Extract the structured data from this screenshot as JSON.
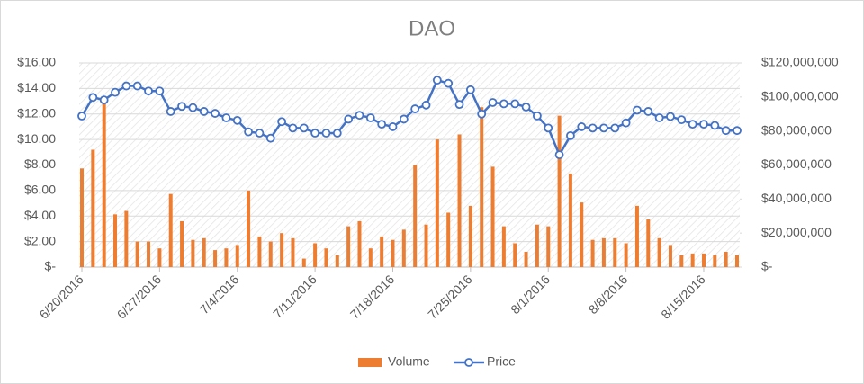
{
  "chart_data": {
    "type": "bar-line",
    "title": "DAO",
    "x": [
      "6/20/2016",
      "6/21/2016",
      "6/22/2016",
      "6/23/2016",
      "6/24/2016",
      "6/25/2016",
      "6/26/2016",
      "6/27/2016",
      "6/28/2016",
      "6/29/2016",
      "6/30/2016",
      "7/1/2016",
      "7/2/2016",
      "7/3/2016",
      "7/4/2016",
      "7/5/2016",
      "7/6/2016",
      "7/7/2016",
      "7/8/2016",
      "7/9/2016",
      "7/10/2016",
      "7/11/2016",
      "7/12/2016",
      "7/13/2016",
      "7/14/2016",
      "7/15/2016",
      "7/16/2016",
      "7/17/2016",
      "7/18/2016",
      "7/19/2016",
      "7/20/2016",
      "7/21/2016",
      "7/22/2016",
      "7/23/2016",
      "7/24/2016",
      "7/25/2016",
      "7/26/2016",
      "7/27/2016",
      "7/28/2016",
      "7/29/2016",
      "7/30/2016",
      "7/31/2016",
      "8/1/2016",
      "8/2/2016",
      "8/3/2016",
      "8/4/2016",
      "8/5/2016",
      "8/6/2016",
      "8/7/2016",
      "8/8/2016",
      "8/9/2016",
      "8/10/2016",
      "8/11/2016",
      "8/12/2016",
      "8/13/2016",
      "8/14/2016",
      "8/15/2016",
      "8/16/2016",
      "8/17/2016",
      "8/18/2016"
    ],
    "xticks": [
      "6/20/2016",
      "6/27/2016",
      "7/4/2016",
      "7/11/2016",
      "7/18/2016",
      "7/25/2016",
      "8/1/2016",
      "8/8/2016",
      "8/15/2016"
    ],
    "series": [
      {
        "name": "Volume",
        "type": "bar",
        "axis": "y2",
        "color": "#ed7d31",
        "values": [
          58000000,
          69000000,
          98000000,
          31000000,
          33000000,
          15000000,
          15000000,
          11000000,
          43000000,
          27000000,
          16000000,
          17000000,
          10000000,
          11000000,
          13000000,
          45000000,
          18000000,
          15000000,
          20000000,
          17000000,
          5000000,
          14000000,
          11000000,
          7000000,
          24000000,
          27000000,
          11000000,
          18000000,
          16000000,
          22000000,
          60000000,
          25000000,
          75000000,
          32000000,
          78000000,
          36000000,
          94000000,
          59000000,
          24000000,
          14000000,
          9000000,
          25000000,
          24000000,
          89000000,
          55000000,
          38000000,
          16000000,
          17000000,
          17000000,
          14000000,
          36000000,
          28000000,
          17000000,
          13000000,
          7000000,
          8000000,
          8000000,
          7000000,
          9000000,
          7000000
        ]
      },
      {
        "name": "Price",
        "type": "line",
        "color": "#4472c4",
        "values": [
          11.84,
          13.3,
          13.1,
          13.7,
          14.2,
          14.2,
          13.8,
          13.8,
          12.2,
          12.6,
          12.5,
          12.2,
          12.05,
          11.7,
          11.5,
          10.6,
          10.5,
          10.1,
          11.4,
          10.9,
          10.9,
          10.5,
          10.5,
          10.5,
          11.6,
          11.9,
          11.7,
          11.2,
          11.0,
          11.6,
          12.4,
          12.7,
          14.65,
          14.4,
          12.75,
          13.9,
          12.0,
          12.9,
          12.8,
          12.8,
          12.55,
          11.85,
          10.9,
          8.8,
          10.3,
          11.0,
          10.9,
          10.9,
          10.9,
          11.3,
          12.3,
          12.2,
          11.7,
          11.8,
          11.55,
          11.2,
          11.2,
          11.1,
          10.7,
          10.7
        ]
      }
    ],
    "ylim": [
      0,
      16
    ],
    "yticks": [
      {
        "value": 0,
        "label": "$-"
      },
      {
        "value": 2,
        "label": "$2.00"
      },
      {
        "value": 4,
        "label": "$4.00"
      },
      {
        "value": 6,
        "label": "$6.00"
      },
      {
        "value": 8,
        "label": "$8.00"
      },
      {
        "value": 10,
        "label": "$10.00"
      },
      {
        "value": 12,
        "label": "$12.00"
      },
      {
        "value": 14,
        "label": "$14.00"
      },
      {
        "value": 16,
        "label": "$16.00"
      }
    ],
    "y2lim": [
      0,
      120000000
    ],
    "y2ticks": [
      {
        "value": 0,
        "label": "$-"
      },
      {
        "value": 20000000,
        "label": "$20,000,000"
      },
      {
        "value": 40000000,
        "label": "$40,000,000"
      },
      {
        "value": 60000000,
        "label": "$60,000,000"
      },
      {
        "value": 80000000,
        "label": "$80,000,000"
      },
      {
        "value": 100000000,
        "label": "$100,000,000"
      },
      {
        "value": 120000000,
        "label": "$120,000,000"
      }
    ],
    "grid": true,
    "legend": "bottom"
  }
}
